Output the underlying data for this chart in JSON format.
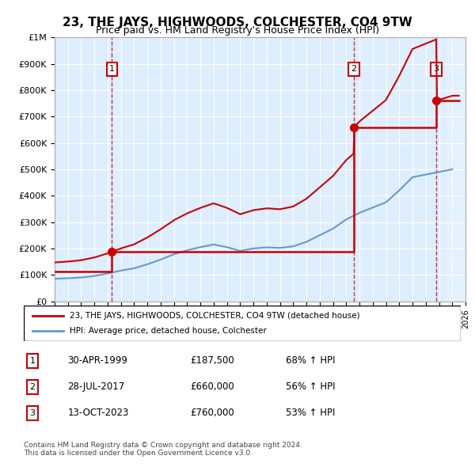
{
  "title": "23, THE JAYS, HIGHWOODS, COLCHESTER, CO4 9TW",
  "subtitle": "Price paid vs. HM Land Registry's House Price Index (HPI)",
  "footnote1": "Contains HM Land Registry data © Crown copyright and database right 2024.",
  "footnote2": "This data is licensed under the Open Government Licence v3.0.",
  "legend_line1": "23, THE JAYS, HIGHWOODS, COLCHESTER, CO4 9TW (detached house)",
  "legend_line2": "HPI: Average price, detached house, Colchester",
  "sale_points": [
    {
      "num": 1,
      "date": "30-APR-1999",
      "price": 187500,
      "pct": "68% ↑ HPI",
      "year": 1999.33
    },
    {
      "num": 2,
      "date": "28-JUL-2017",
      "price": 660000,
      "pct": "56% ↑ HPI",
      "year": 2017.58
    },
    {
      "num": 3,
      "date": "13-OCT-2023",
      "price": 760000,
      "pct": "53% ↑ HPI",
      "year": 2023.79
    }
  ],
  "red_line_color": "#cc0000",
  "blue_line_color": "#6699cc",
  "bg_color": "#ddeeff",
  "grid_color": "#ffffff",
  "xmin": 1995,
  "xmax": 2026,
  "ymin": 0,
  "ymax": 1000000,
  "hpi_years": [
    1995,
    1996,
    1997,
    1998,
    1999,
    2000,
    2001,
    2002,
    2003,
    2004,
    2005,
    2006,
    2007,
    2008,
    2009,
    2010,
    2011,
    2012,
    2013,
    2014,
    2015,
    2016,
    2017,
    2018,
    2019,
    2020,
    2021,
    2022,
    2023,
    2024,
    2025
  ],
  "hpi_values": [
    85000,
    87000,
    90000,
    96000,
    105000,
    116000,
    125000,
    140000,
    158000,
    178000,
    193000,
    205000,
    215000,
    205000,
    191000,
    200000,
    204000,
    202000,
    208000,
    225000,
    250000,
    275000,
    310000,
    335000,
    355000,
    375000,
    420000,
    470000,
    480000,
    490000,
    500000
  ],
  "property_years": [
    1995.0,
    1999.33,
    2017.58,
    2023.79,
    2025.5
  ],
  "property_values": [
    111500,
    187500,
    660000,
    760000,
    760000
  ],
  "hatch_start": 2024.5
}
